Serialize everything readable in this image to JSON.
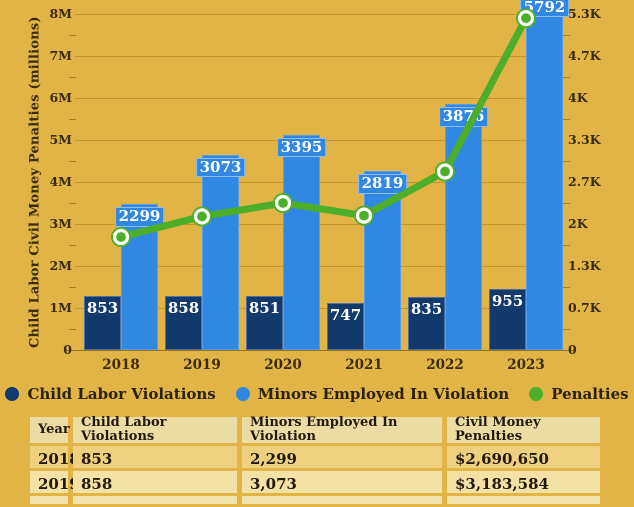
{
  "chart": {
    "y_axis_title": "Child Labor Civil Money Penalties (millions)",
    "left_ticks": [
      "8M",
      "7M",
      "6M",
      "5M",
      "4M",
      "3M",
      "2M",
      "1M",
      "0"
    ],
    "right_ticks": [
      "5.3K",
      "4.7K",
      "4K",
      "3.3K",
      "2.7K",
      "2K",
      "1.3K",
      "0.7K",
      "0"
    ]
  },
  "chart_data": {
    "type": "bar",
    "title": "",
    "categories": [
      "2018",
      "2019",
      "2020",
      "2021",
      "2022",
      "2023"
    ],
    "series": [
      {
        "name": "Child Labor Violations",
        "type": "bar",
        "axis": "right",
        "color": "#133A6D",
        "values": [
          853,
          858,
          851,
          747,
          835,
          955
        ]
      },
      {
        "name": "Minors Employed In Violation",
        "type": "bar",
        "axis": "right",
        "color": "#3088E2",
        "values": [
          2299,
          3073,
          3395,
          2819,
          3876,
          5792
        ]
      },
      {
        "name": "Penalties",
        "type": "line",
        "axis": "left",
        "color": "#4CAE29",
        "values_millions": [
          2.69,
          3.18,
          3.5,
          3.2,
          4.25,
          7.9
        ]
      }
    ],
    "left_axis": {
      "label": "Child Labor Civil Money Penalties (millions)",
      "range_millions": [
        0,
        8
      ]
    },
    "right_axis": {
      "range": [
        0,
        5300
      ]
    },
    "grid": true,
    "legend_position": "bottom"
  },
  "legend": {
    "items": [
      {
        "label": "Child Labor Violations",
        "color": "#133A6D"
      },
      {
        "label": "Minors Employed In Violation",
        "color": "#3088E2"
      },
      {
        "label": "Penalties",
        "color": "#4CAE29"
      }
    ]
  },
  "table": {
    "headers": [
      "Year",
      "Child Labor Violations",
      "Minors Employed In Violation",
      "Civil Money Penalties"
    ],
    "rows": [
      [
        "2018",
        "853",
        "2,299",
        "$2,690,650"
      ],
      [
        "2019",
        "858",
        "3,073",
        "$3,183,584"
      ]
    ]
  },
  "colors": {
    "background": "#E2B345",
    "navy_bar": "#133A6D",
    "blue_bar": "#3088E2",
    "green_line": "#4CAE29",
    "axis_text": "#3A2B0D",
    "table_header_bg": "#EBDCA4",
    "table_row_gold": "#EFD07E",
    "table_row_cream": "#F3E1A6"
  }
}
